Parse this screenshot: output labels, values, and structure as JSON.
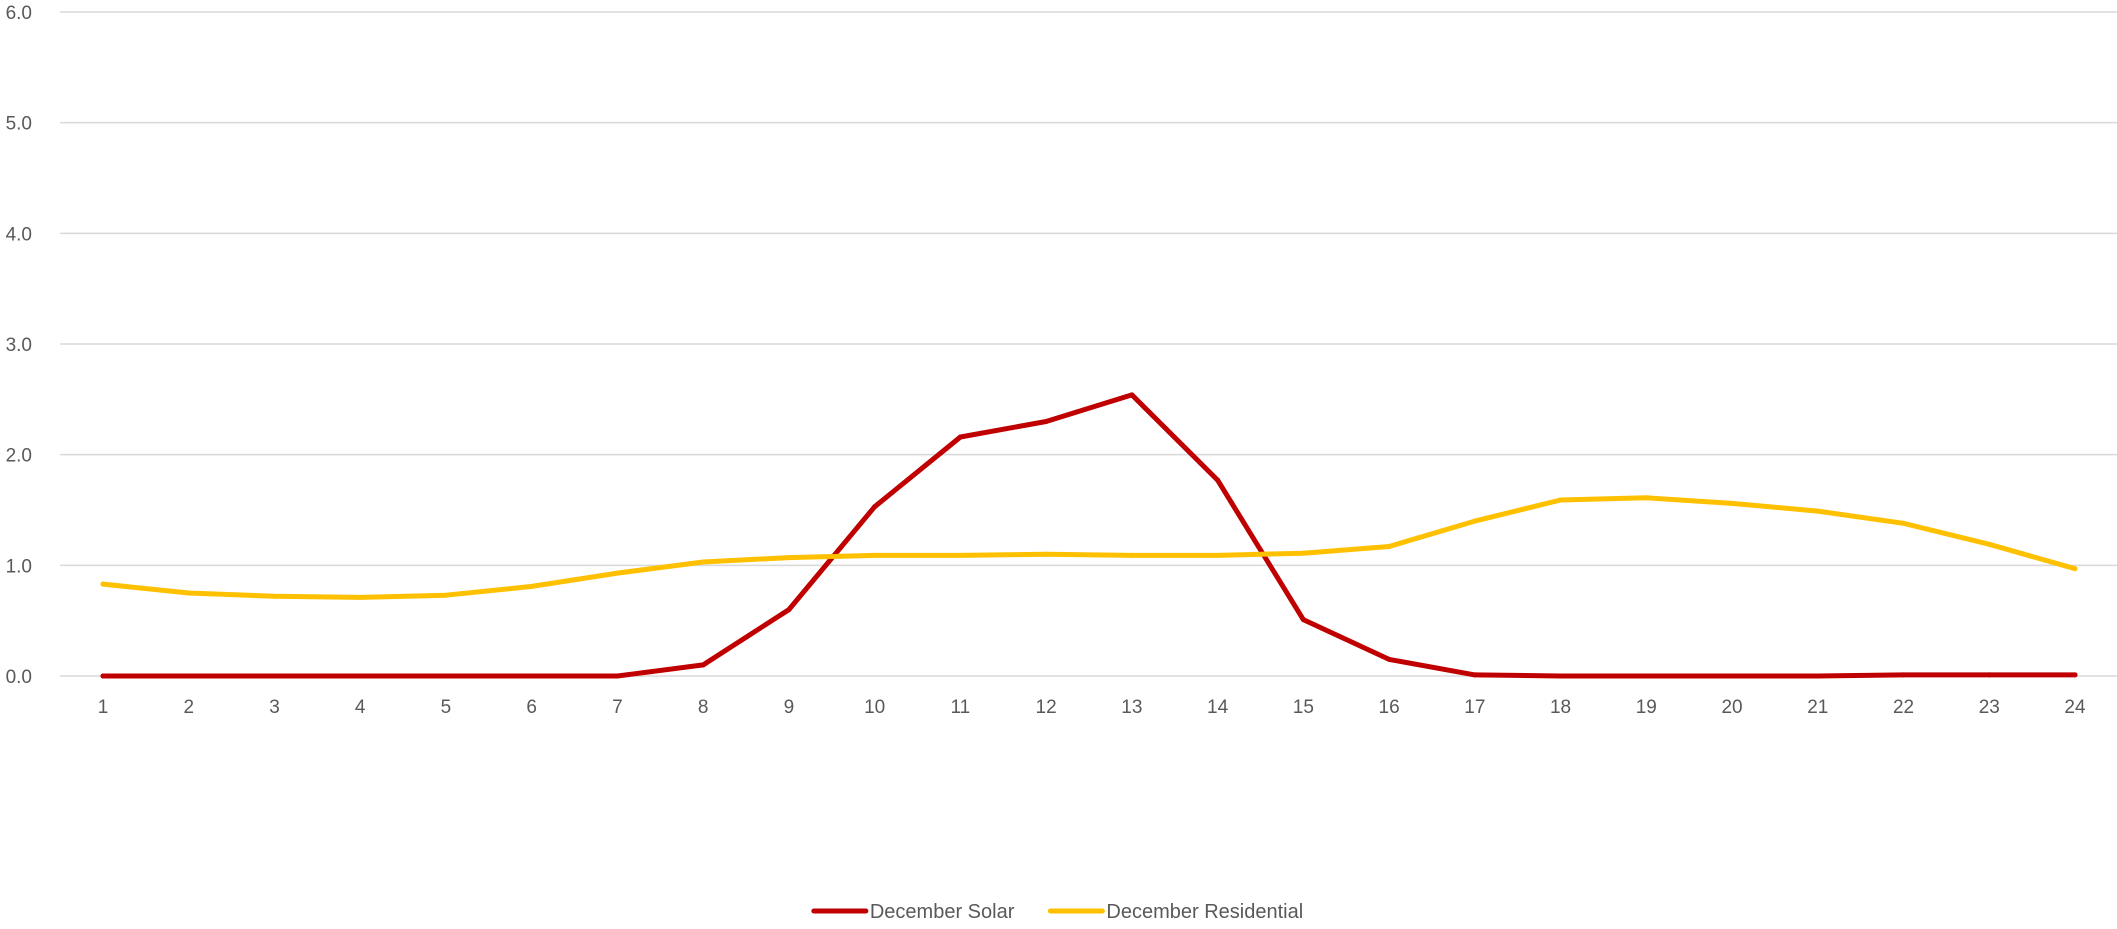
{
  "chart_data": {
    "type": "line",
    "title": "",
    "xlabel": "",
    "ylabel": "",
    "categories": [
      "1",
      "2",
      "3",
      "4",
      "5",
      "6",
      "7",
      "8",
      "9",
      "10",
      "11",
      "12",
      "13",
      "14",
      "15",
      "16",
      "17",
      "18",
      "19",
      "20",
      "21",
      "22",
      "23",
      "24"
    ],
    "ylim": [
      0,
      6
    ],
    "yticks": [
      "0.0",
      "1.0",
      "2.0",
      "3.0",
      "4.0",
      "5.0",
      "6.0"
    ],
    "grid": true,
    "legend_position": "bottom",
    "series": [
      {
        "name": "December Solar",
        "color": "#C00000",
        "values": [
          0.0,
          0.0,
          0.0,
          0.0,
          0.0,
          0.0,
          0.0,
          0.1,
          0.6,
          1.53,
          2.16,
          2.3,
          2.54,
          1.77,
          0.51,
          0.15,
          0.01,
          0.0,
          0.0,
          0.0,
          0.0,
          0.01,
          0.01,
          0.01
        ]
      },
      {
        "name": "December Residential",
        "color": "#FFC000",
        "values": [
          0.83,
          0.75,
          0.72,
          0.71,
          0.73,
          0.81,
          0.93,
          1.03,
          1.07,
          1.09,
          1.09,
          1.1,
          1.09,
          1.09,
          1.11,
          1.17,
          1.4,
          1.59,
          1.61,
          1.56,
          1.49,
          1.38,
          1.19,
          0.97
        ]
      }
    ]
  }
}
